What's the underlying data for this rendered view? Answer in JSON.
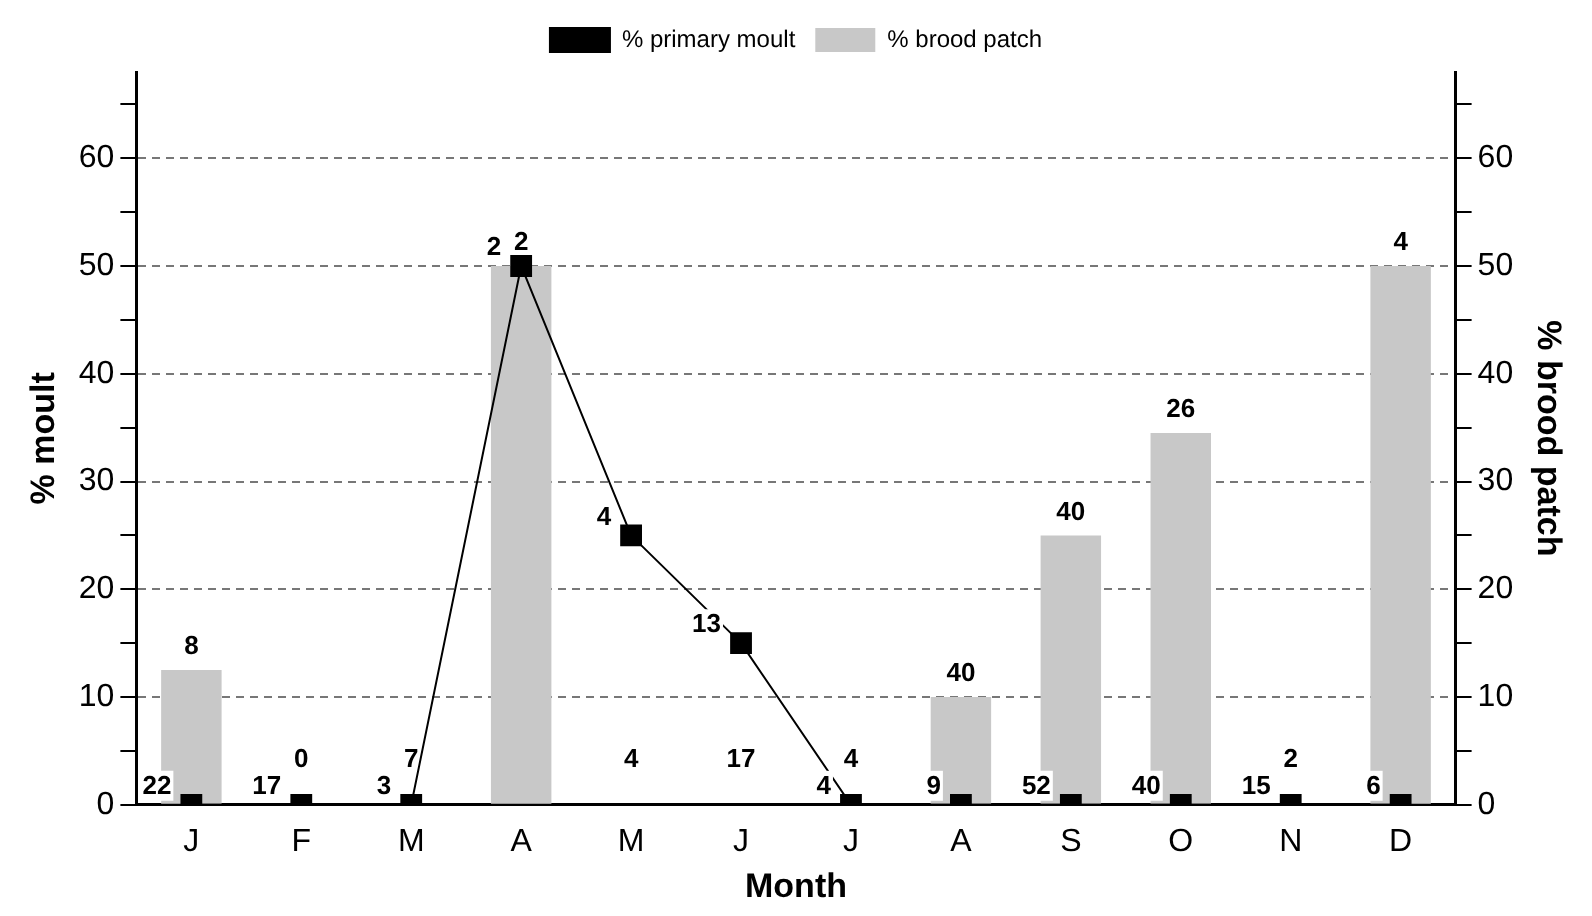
{
  "chart_data": {
    "type": "bar",
    "xlabel": "Month",
    "ylabel": "% moult",
    "y2label": "% brood patch",
    "categories": [
      "J",
      "F",
      "M",
      "A",
      "M",
      "J",
      "J",
      "A",
      "S",
      "O",
      "N",
      "D"
    ],
    "series": [
      {
        "name": "% primary moult",
        "type": "line",
        "color": "#000000",
        "values": [
          0,
          0,
          0,
          50,
          25,
          15,
          0,
          0,
          0,
          0,
          0,
          0
        ]
      },
      {
        "name": "% brood patch",
        "color": "#c8c8c8",
        "values": [
          12.5,
          0,
          0,
          50,
          0,
          0,
          0,
          10,
          25,
          34.5,
          0,
          50
        ]
      }
    ],
    "annotations": [
      "22",
      "8",
      "17",
      "0",
      "3",
      "7",
      "2",
      "2",
      "4",
      "4",
      "13",
      "17",
      "4",
      "4",
      "9",
      "40",
      "52",
      "40",
      "40",
      "26",
      "15",
      "2",
      "6",
      "4"
    ],
    "ylim": [
      0,
      68
    ],
    "yticks": [
      0,
      {
        "value": 5,
        "label": null
      },
      10,
      {
        "value": 15,
        "label": null
      },
      20,
      {
        "value": 25,
        "label": null
      },
      30,
      {
        "value": 35,
        "label": null
      },
      40,
      {
        "value": 45,
        "label": null
      },
      50,
      {
        "value": 55,
        "label": null
      },
      60,
      {
        "value": 65,
        "label": null
      }
    ],
    "y2lim": [
      0,
      68
    ],
    "y2ticks": [
      0,
      {
        "value": 5,
        "label": null
      },
      10,
      {
        "value": 15,
        "label": null
      },
      20,
      {
        "value": 25,
        "label": null
      },
      30,
      {
        "value": 35,
        "label": null
      },
      40,
      {
        "value": 45,
        "label": null
      },
      50,
      {
        "value": 55,
        "label": null
      },
      60,
      {
        "value": 65,
        "label": null
      }
    ],
    "grid": "y",
    "legend": "top",
    "marker": "square",
    "line_style": "solid"
  }
}
